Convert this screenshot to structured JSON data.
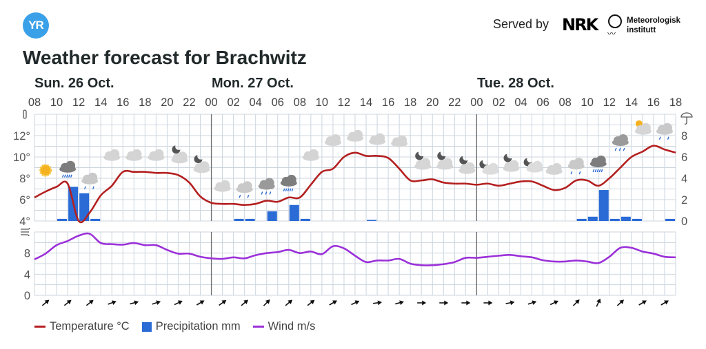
{
  "header": {
    "logo_text": "YR",
    "served_by": "Served by",
    "nrk_logo": "NRK",
    "met_logo": "Meteorologisk institutt",
    "met_line1": "Meteorologisk",
    "met_line2": "institutt"
  },
  "title": "Weather forecast for Brachwitz",
  "days": [
    {
      "label": "Sun. 26 Oct.",
      "start_hour_index": 0
    },
    {
      "label": "Mon. 27 Oct.",
      "start_hour_index": 16
    },
    {
      "label": "Tue. 28 Oct.",
      "start_hour_index": 40
    }
  ],
  "colors": {
    "temperature": "#b41f1f",
    "precipitation": "#2a6bd6",
    "wind": "#9b30d9",
    "grid": "#ccd5de",
    "day_line": "#6b6b6b"
  },
  "chart_data": {
    "type": "line",
    "hours": [
      "08",
      "09",
      "10",
      "11",
      "12",
      "13",
      "14",
      "15",
      "16",
      "17",
      "18",
      "19",
      "20",
      "21",
      "22",
      "23",
      "00",
      "01",
      "02",
      "03",
      "04",
      "05",
      "06",
      "07",
      "08",
      "09",
      "10",
      "11",
      "12",
      "13",
      "14",
      "15",
      "16",
      "17",
      "18",
      "19",
      "20",
      "21",
      "22",
      "23",
      "00",
      "01",
      "02",
      "03",
      "04",
      "05",
      "06",
      "07",
      "08",
      "09",
      "10",
      "11",
      "12",
      "13",
      "14",
      "15",
      "16",
      "17",
      "18"
    ],
    "hour_tick_labels": [
      "08",
      "10",
      "12",
      "14",
      "16",
      "18",
      "20",
      "22",
      "00",
      "02",
      "04",
      "06",
      "08",
      "10",
      "12",
      "14",
      "16",
      "18",
      "20",
      "22",
      "00",
      "02",
      "04",
      "06",
      "08",
      "10",
      "12",
      "14",
      "16",
      "18"
    ],
    "temperature": {
      "name": "Temperature °C",
      "ylim": [
        4,
        14
      ],
      "ticks": [
        "4°",
        "6°",
        "8°",
        "10°",
        "12°"
      ],
      "tick_values": [
        4,
        6,
        8,
        10,
        12
      ],
      "values": [
        6.2,
        6.75,
        7.2,
        7.5,
        4.0,
        4.8,
        6.4,
        7.3,
        8.6,
        8.6,
        8.6,
        8.5,
        8.5,
        8.3,
        7.6,
        6.3,
        5.7,
        5.6,
        5.6,
        5.5,
        5.6,
        5.9,
        5.8,
        6.2,
        6.2,
        7.4,
        8.6,
        8.9,
        10.0,
        10.4,
        10.1,
        10.1,
        9.9,
        8.9,
        7.8,
        7.8,
        7.9,
        7.6,
        7.5,
        7.5,
        7.4,
        7.5,
        7.3,
        7.5,
        7.7,
        7.7,
        7.3,
        6.9,
        7.1,
        7.8,
        7.8,
        7.3,
        8.0,
        9.0,
        10.0,
        10.5,
        11.05,
        10.7,
        10.4
      ]
    },
    "precipitation": {
      "name": "Precipitation mm",
      "ylim": [
        0,
        10
      ],
      "ticks": [
        "0",
        "2",
        "4",
        "6",
        "8"
      ],
      "tick_values": [
        0,
        2,
        4,
        6,
        8
      ],
      "values": [
        0,
        0,
        0.2,
        3.2,
        2.6,
        0.2,
        0,
        0,
        0,
        0,
        0,
        0,
        0,
        0,
        0,
        0,
        0,
        0,
        0.2,
        0.2,
        0,
        0.9,
        0,
        1.5,
        0.2,
        0,
        0,
        0,
        0,
        0,
        0.1,
        0,
        0,
        0,
        0,
        0,
        0,
        0,
        0,
        0,
        0,
        0,
        0,
        0,
        0,
        0,
        0,
        0,
        0,
        0.2,
        0.4,
        2.9,
        0.2,
        0.4,
        0.2,
        0,
        0,
        0.2
      ]
    },
    "wind": {
      "name": "Wind m/s",
      "ylim": [
        0,
        12
      ],
      "ticks": [
        "0",
        "4",
        "8"
      ],
      "tick_values": [
        0,
        4,
        8
      ],
      "values": [
        6.8,
        7.9,
        9.5,
        10.3,
        11.3,
        11.65,
        9.9,
        9.7,
        9.6,
        9.9,
        9.5,
        9.5,
        8.6,
        7.9,
        7.9,
        7.3,
        7.0,
        6.9,
        7.2,
        7.0,
        7.6,
        8.0,
        8.2,
        8.6,
        8.0,
        8.3,
        7.8,
        9.3,
        8.9,
        7.5,
        6.3,
        6.6,
        6.6,
        6.9,
        6.0,
        5.7,
        5.7,
        5.9,
        6.3,
        7.1,
        7.1,
        7.3,
        7.5,
        7.65,
        7.4,
        7.2,
        6.65,
        6.4,
        6.4,
        6.6,
        6.4,
        6.1,
        7.3,
        9.0,
        9.0,
        8.3,
        7.9,
        7.3,
        7.2
      ]
    },
    "symbols": [
      {
        "hour_index": 1,
        "type": "clearsky_day"
      },
      {
        "hour_index": 3,
        "type": "heavyrain"
      },
      {
        "hour_index": 5,
        "type": "lightrain"
      },
      {
        "hour_index": 7,
        "type": "cloudy"
      },
      {
        "hour_index": 9,
        "type": "cloudy"
      },
      {
        "hour_index": 11,
        "type": "cloudy"
      },
      {
        "hour_index": 13,
        "type": "partlycloudy_night"
      },
      {
        "hour_index": 15,
        "type": "partlycloudy_night"
      },
      {
        "hour_index": 17,
        "type": "cloudy"
      },
      {
        "hour_index": 19,
        "type": "lightrain"
      },
      {
        "hour_index": 21,
        "type": "rain"
      },
      {
        "hour_index": 23,
        "type": "heavyrain"
      },
      {
        "hour_index": 25,
        "type": "cloudy"
      },
      {
        "hour_index": 27,
        "type": "cloudy"
      },
      {
        "hour_index": 29,
        "type": "cloudy"
      },
      {
        "hour_index": 31,
        "type": "cloudy"
      },
      {
        "hour_index": 33,
        "type": "cloudy"
      },
      {
        "hour_index": 35,
        "type": "partlycloudy_night"
      },
      {
        "hour_index": 37,
        "type": "partlycloudy_night"
      },
      {
        "hour_index": 39,
        "type": "partlycloudy_night"
      },
      {
        "hour_index": 41,
        "type": "fair_night"
      },
      {
        "hour_index": 43,
        "type": "partlycloudy_night"
      },
      {
        "hour_index": 45,
        "type": "fair_night"
      },
      {
        "hour_index": 47,
        "type": "cloudy"
      },
      {
        "hour_index": 49,
        "type": "lightrain"
      },
      {
        "hour_index": 51,
        "type": "heavyrain"
      },
      {
        "hour_index": 53,
        "type": "rain"
      },
      {
        "hour_index": 55,
        "type": "partlycloudy_day"
      },
      {
        "hour_index": 57,
        "type": "lightrain"
      }
    ],
    "wind_direction_arrows": [
      {
        "hour_index": 1,
        "angle": -40
      },
      {
        "hour_index": 3,
        "angle": -38
      },
      {
        "hour_index": 5,
        "angle": -38
      },
      {
        "hour_index": 7,
        "angle": -20
      },
      {
        "hour_index": 9,
        "angle": -15
      },
      {
        "hour_index": 11,
        "angle": -18
      },
      {
        "hour_index": 13,
        "angle": -25
      },
      {
        "hour_index": 15,
        "angle": -30
      },
      {
        "hour_index": 17,
        "angle": -35
      },
      {
        "hour_index": 19,
        "angle": -40
      },
      {
        "hour_index": 21,
        "angle": -45
      },
      {
        "hour_index": 23,
        "angle": -40
      },
      {
        "hour_index": 25,
        "angle": -38
      },
      {
        "hour_index": 27,
        "angle": -30
      },
      {
        "hour_index": 29,
        "angle": -25
      },
      {
        "hour_index": 31,
        "angle": -8
      },
      {
        "hour_index": 33,
        "angle": -15
      },
      {
        "hour_index": 35,
        "angle": 0
      },
      {
        "hour_index": 37,
        "angle": 0
      },
      {
        "hour_index": 39,
        "angle": 0
      },
      {
        "hour_index": 41,
        "angle": 0
      },
      {
        "hour_index": 43,
        "angle": -10
      },
      {
        "hour_index": 45,
        "angle": -18
      },
      {
        "hour_index": 47,
        "angle": -25
      },
      {
        "hour_index": 49,
        "angle": -45
      },
      {
        "hour_index": 51,
        "angle": -65
      },
      {
        "hour_index": 53,
        "angle": -42
      },
      {
        "hour_index": 55,
        "angle": -30
      },
      {
        "hour_index": 57,
        "angle": -30
      }
    ]
  },
  "legend": {
    "temperature": "Temperature °C",
    "precipitation": "Precipitation mm",
    "wind": "Wind m/s"
  }
}
